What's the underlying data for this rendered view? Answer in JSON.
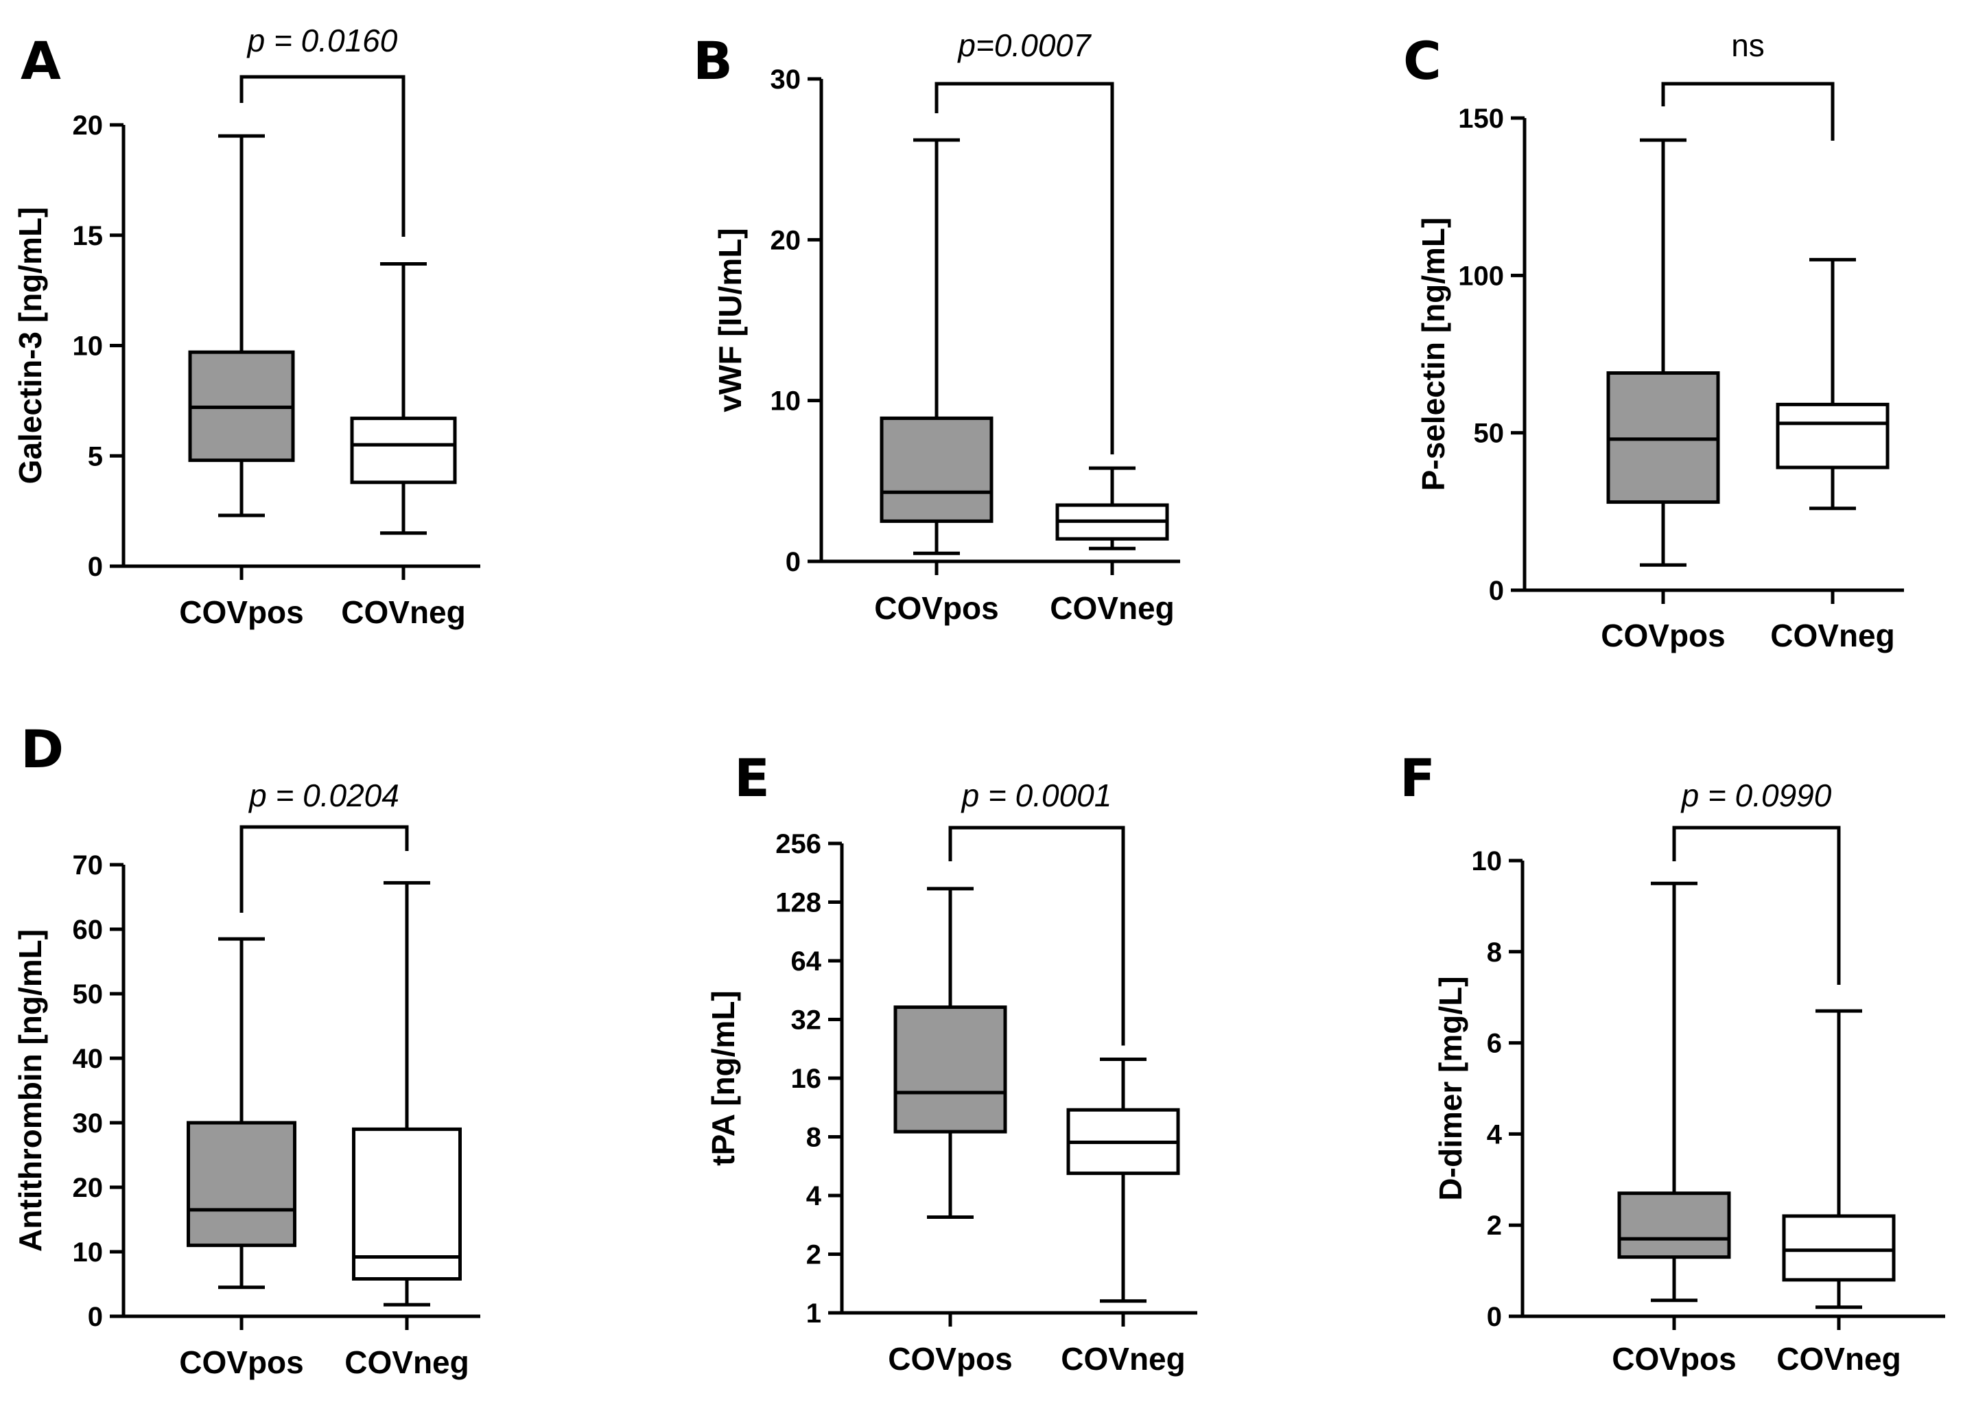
{
  "figure": {
    "categories": [
      "COVpos",
      "COVneg"
    ],
    "colors": {
      "covpos_fill": "#999999",
      "covneg_fill": "#ffffff",
      "stroke": "#000000"
    }
  },
  "chart_data": [
    {
      "panel": "A",
      "type": "box",
      "ylabel": "Galectin-3 [ng/mL]",
      "yscale": "linear",
      "ylim": [
        0,
        20
      ],
      "yticks": [
        0,
        5,
        10,
        15,
        20
      ],
      "categories": [
        "COVpos",
        "COVneg"
      ],
      "annotation": "p = 0.0160",
      "boxes": [
        {
          "name": "COVpos",
          "min": 2.3,
          "q1": 4.8,
          "median": 7.2,
          "q3": 9.7,
          "max": 19.5
        },
        {
          "name": "COVneg",
          "min": 1.5,
          "q1": 3.8,
          "median": 5.5,
          "q3": 6.7,
          "max": 13.7
        }
      ]
    },
    {
      "panel": "B",
      "type": "box",
      "ylabel": "vWF [IU/mL]",
      "yscale": "linear",
      "ylim": [
        0,
        30
      ],
      "yticks": [
        0,
        10,
        20,
        30
      ],
      "categories": [
        "COVpos",
        "COVneg"
      ],
      "annotation": "p=0.0007",
      "boxes": [
        {
          "name": "COVpos",
          "min": 0.5,
          "q1": 2.5,
          "median": 4.3,
          "q3": 8.9,
          "max": 26.2
        },
        {
          "name": "COVneg",
          "min": 0.8,
          "q1": 1.4,
          "median": 2.5,
          "q3": 3.5,
          "max": 5.8
        }
      ]
    },
    {
      "panel": "C",
      "type": "box",
      "ylabel": "P-selectin [ng/mL]",
      "yscale": "linear",
      "ylim": [
        0,
        150
      ],
      "yticks": [
        0,
        50,
        100,
        150
      ],
      "categories": [
        "COVpos",
        "COVneg"
      ],
      "annotation": "ns",
      "boxes": [
        {
          "name": "COVpos",
          "min": 8,
          "q1": 28,
          "median": 48,
          "q3": 69,
          "max": 143
        },
        {
          "name": "COVneg",
          "min": 26,
          "q1": 39,
          "median": 53,
          "q3": 59,
          "max": 105
        }
      ]
    },
    {
      "panel": "D",
      "type": "box",
      "ylabel": "Antithrombin [ng/mL]",
      "yscale": "linear",
      "ylim": [
        0,
        70
      ],
      "yticks": [
        0,
        10,
        20,
        30,
        40,
        50,
        60,
        70
      ],
      "categories": [
        "COVpos",
        "COVneg"
      ],
      "annotation": "p = 0.0204",
      "boxes": [
        {
          "name": "COVpos",
          "min": 4.5,
          "q1": 11,
          "median": 16.5,
          "q3": 30,
          "max": 58.5
        },
        {
          "name": "COVneg",
          "min": 1.8,
          "q1": 5.8,
          "median": 9.2,
          "q3": 29,
          "max": 67.2
        }
      ]
    },
    {
      "panel": "E",
      "type": "box",
      "ylabel": "tPA [ng/mL]",
      "yscale": "log2",
      "ylim": [
        1,
        256
      ],
      "yticks": [
        1,
        2,
        4,
        8,
        16,
        32,
        64,
        128,
        256
      ],
      "categories": [
        "COVpos",
        "COVneg"
      ],
      "annotation": "p = 0.0001",
      "boxes": [
        {
          "name": "COVpos",
          "min": 3.1,
          "q1": 8.5,
          "median": 13.5,
          "q3": 37,
          "max": 150
        },
        {
          "name": "COVneg",
          "min": 1.15,
          "q1": 5.2,
          "median": 7.5,
          "q3": 11,
          "max": 20
        }
      ]
    },
    {
      "panel": "F",
      "type": "box",
      "ylabel": "D-dimer [mg/L]",
      "yscale": "linear",
      "ylim": [
        0,
        10
      ],
      "yticks": [
        0,
        2,
        4,
        6,
        8,
        10
      ],
      "categories": [
        "COVpos",
        "COVneg"
      ],
      "annotation": "p = 0.0990",
      "boxes": [
        {
          "name": "COVpos",
          "min": 0.35,
          "q1": 1.3,
          "median": 1.7,
          "q3": 2.7,
          "max": 9.5
        },
        {
          "name": "COVneg",
          "min": 0.2,
          "q1": 0.8,
          "median": 1.45,
          "q3": 2.2,
          "max": 6.7
        }
      ]
    }
  ]
}
